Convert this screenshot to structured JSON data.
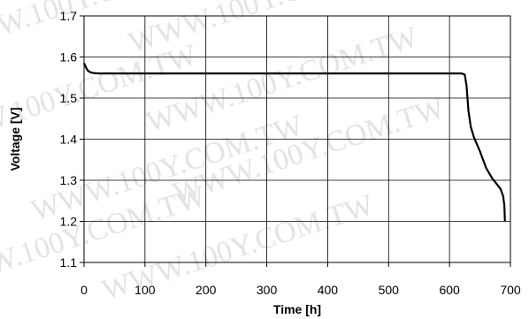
{
  "watermark": "WWW.100Y.COM.TW",
  "chart_data": {
    "type": "line",
    "title": "",
    "xlabel": "Time [h]",
    "ylabel": "Voltage [V]",
    "xlim": [
      0,
      700
    ],
    "ylim": [
      1.1,
      1.7
    ],
    "xticks": [
      "0",
      "100",
      "200",
      "300",
      "400",
      "500",
      "600",
      "700"
    ],
    "yticks": [
      "1.1",
      "1.2",
      "1.3",
      "1.4",
      "1.5",
      "1.6",
      "1.7"
    ],
    "grid": true,
    "series": [
      {
        "x": [
          0,
          3,
          6,
          10,
          15,
          25,
          100,
          300,
          500,
          620,
          625,
          628,
          631,
          635,
          640,
          650,
          660,
          670,
          678,
          684,
          688,
          690,
          691
        ],
        "y": [
          1.585,
          1.575,
          1.567,
          1.563,
          1.561,
          1.56,
          1.56,
          1.56,
          1.56,
          1.56,
          1.557,
          1.53,
          1.47,
          1.43,
          1.405,
          1.37,
          1.33,
          1.305,
          1.29,
          1.278,
          1.262,
          1.24,
          1.2
        ]
      }
    ]
  }
}
